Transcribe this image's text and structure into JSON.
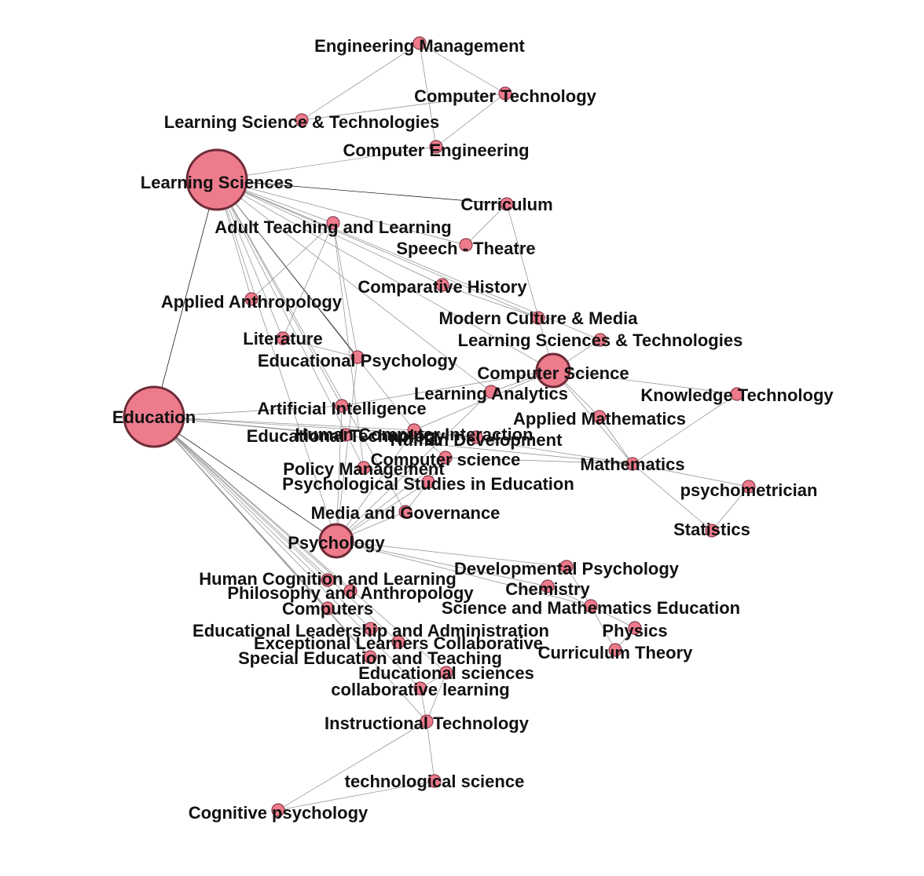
{
  "colors": {
    "node_fill": "#ee7b8c",
    "node_stroke": "#8a3a48",
    "edge": "#8a8a8a",
    "heavy_edge": "#000000",
    "label": "#111111"
  },
  "nodes": [
    {
      "id": "eng_mgmt",
      "label": "Engineering Management",
      "size": "small"
    },
    {
      "id": "comp_tech",
      "label": "Computer Technology",
      "size": "small"
    },
    {
      "id": "lst1",
      "label": "Learning Science & Technologies",
      "size": "small"
    },
    {
      "id": "comp_eng",
      "label": "Computer Engineering",
      "size": "small"
    },
    {
      "id": "ls",
      "label": "Learning Sciences",
      "size": "large"
    },
    {
      "id": "curriculum",
      "label": "Curriculum",
      "size": "small"
    },
    {
      "id": "adult",
      "label": "Adult Teaching and Learning",
      "size": "small"
    },
    {
      "id": "speech",
      "label": "Speech - Theatre",
      "size": "small"
    },
    {
      "id": "comp_hist",
      "label": "Comparative History",
      "size": "small"
    },
    {
      "id": "anthro",
      "label": "Applied Anthropology",
      "size": "small"
    },
    {
      "id": "modern",
      "label": "Modern Culture & Media",
      "size": "small"
    },
    {
      "id": "literature",
      "label": "Literature",
      "size": "small"
    },
    {
      "id": "lst2",
      "label": "Learning Sciences & Technologies",
      "size": "small"
    },
    {
      "id": "edpsych",
      "label": "Educational Psychology",
      "size": "small"
    },
    {
      "id": "cs",
      "label": "Computer Science",
      "size": "medium"
    },
    {
      "id": "la",
      "label": "Learning Analytics",
      "size": "small"
    },
    {
      "id": "kt",
      "label": "Knowledge Technology",
      "size": "small"
    },
    {
      "id": "education",
      "label": "Education",
      "size": "large"
    },
    {
      "id": "ai",
      "label": "Artificial Intelligence",
      "size": "small"
    },
    {
      "id": "am",
      "label": "Applied Mathematics",
      "size": "small"
    },
    {
      "id": "edtech",
      "label": "Educational Technology",
      "size": "small"
    },
    {
      "id": "hci",
      "label": "Human Computer Interaction",
      "size": "small"
    },
    {
      "id": "hd",
      "label": "Human Development",
      "size": "small"
    },
    {
      "id": "cs_lower",
      "label": "Computer science",
      "size": "small"
    },
    {
      "id": "math",
      "label": "Mathematics",
      "size": "small"
    },
    {
      "id": "policy",
      "label": "Policy Management",
      "size": "small"
    },
    {
      "id": "pse",
      "label": "Psychological Studies in Education",
      "size": "small"
    },
    {
      "id": "psychometrician",
      "label": "psychometrician",
      "size": "small"
    },
    {
      "id": "media",
      "label": "Media and Governance",
      "size": "small"
    },
    {
      "id": "statistics",
      "label": "Statistics",
      "size": "small"
    },
    {
      "id": "psychology",
      "label": "Psychology",
      "size": "medium"
    },
    {
      "id": "devpsych",
      "label": "Developmental Psychology",
      "size": "small"
    },
    {
      "id": "hcl",
      "label": "Human Cognition and Learning",
      "size": "small"
    },
    {
      "id": "chemistry",
      "label": "Chemistry",
      "size": "small"
    },
    {
      "id": "philanthro",
      "label": "Philosophy and Anthropology",
      "size": "small"
    },
    {
      "id": "computers",
      "label": "Computers",
      "size": "small"
    },
    {
      "id": "sme",
      "label": "Science and Mathematics Education",
      "size": "small"
    },
    {
      "id": "ela",
      "label": "Educational Leadership and Administration",
      "size": "small"
    },
    {
      "id": "physics",
      "label": "Physics",
      "size": "small"
    },
    {
      "id": "elc",
      "label": "Exceptional Learners Collaborative",
      "size": "small"
    },
    {
      "id": "ct",
      "label": "Curriculum Theory",
      "size": "small"
    },
    {
      "id": "set",
      "label": "Special Education and Teaching",
      "size": "small"
    },
    {
      "id": "edsci",
      "label": "Educational sciences",
      "size": "small"
    },
    {
      "id": "collab",
      "label": "collaborative learning",
      "size": "small"
    },
    {
      "id": "instech",
      "label": "Instructional Technology",
      "size": "small"
    },
    {
      "id": "techsci",
      "label": "technological science",
      "size": "small"
    },
    {
      "id": "cogpsych",
      "label": "Cognitive psychology",
      "size": "small"
    }
  ],
  "edges": [
    {
      "source": "eng_mgmt",
      "target": "lst1",
      "weight": 1
    },
    {
      "source": "eng_mgmt",
      "target": "comp_tech",
      "weight": 1
    },
    {
      "source": "eng_mgmt",
      "target": "comp_eng",
      "weight": 1
    },
    {
      "source": "lst1",
      "target": "comp_tech",
      "weight": 1
    },
    {
      "source": "comp_tech",
      "target": "comp_eng",
      "weight": 1
    },
    {
      "source": "ls",
      "target": "comp_eng",
      "weight": 1
    },
    {
      "source": "ls",
      "target": "curriculum",
      "weight": 4
    },
    {
      "source": "ls",
      "target": "education",
      "weight": 4
    },
    {
      "source": "ls",
      "target": "edpsych",
      "weight": 4
    },
    {
      "source": "ls",
      "target": "adult",
      "weight": 1
    },
    {
      "source": "ls",
      "target": "speech",
      "weight": 1
    },
    {
      "source": "ls",
      "target": "comp_hist",
      "weight": 1
    },
    {
      "source": "ls",
      "target": "anthro",
      "weight": 1
    },
    {
      "source": "ls",
      "target": "literature",
      "weight": 1
    },
    {
      "source": "ls",
      "target": "modern",
      "weight": 1
    },
    {
      "source": "ls",
      "target": "cs",
      "weight": 1
    },
    {
      "source": "ls",
      "target": "lst2",
      "weight": 1
    },
    {
      "source": "ls",
      "target": "la",
      "weight": 1
    },
    {
      "source": "ls",
      "target": "ai",
      "weight": 1
    },
    {
      "source": "ls",
      "target": "hci",
      "weight": 1
    },
    {
      "source": "ls",
      "target": "psychology",
      "weight": 1
    },
    {
      "source": "ls",
      "target": "policy",
      "weight": 1
    },
    {
      "source": "ls",
      "target": "media",
      "weight": 1
    },
    {
      "source": "curriculum",
      "target": "speech",
      "weight": 1
    },
    {
      "source": "curriculum",
      "target": "cs",
      "weight": 1
    },
    {
      "source": "adult",
      "target": "anthro",
      "weight": 1
    },
    {
      "source": "adult",
      "target": "literature",
      "weight": 1
    },
    {
      "source": "adult",
      "target": "edpsych",
      "weight": 1
    },
    {
      "source": "adult",
      "target": "policy",
      "weight": 1
    },
    {
      "source": "education",
      "target": "psychology",
      "weight": 6
    },
    {
      "source": "education",
      "target": "ai",
      "weight": 1
    },
    {
      "source": "education",
      "target": "edtech",
      "weight": 1
    },
    {
      "source": "education",
      "target": "hci",
      "weight": 1
    },
    {
      "source": "education",
      "target": "hd",
      "weight": 1
    },
    {
      "source": "education",
      "target": "math",
      "weight": 1
    },
    {
      "source": "education",
      "target": "hcl",
      "weight": 1
    },
    {
      "source": "education",
      "target": "philanthro",
      "weight": 1
    },
    {
      "source": "education",
      "target": "computers",
      "weight": 1
    },
    {
      "source": "education",
      "target": "ela",
      "weight": 1
    },
    {
      "source": "education",
      "target": "elc",
      "weight": 1
    },
    {
      "source": "education",
      "target": "set",
      "weight": 1
    },
    {
      "source": "education",
      "target": "edsci",
      "weight": 1
    },
    {
      "source": "education",
      "target": "collab",
      "weight": 1
    },
    {
      "source": "education",
      "target": "instech",
      "weight": 1
    },
    {
      "source": "cs",
      "target": "la",
      "weight": 1
    },
    {
      "source": "cs",
      "target": "kt",
      "weight": 1
    },
    {
      "source": "cs",
      "target": "am",
      "weight": 1
    },
    {
      "source": "cs",
      "target": "math",
      "weight": 1
    },
    {
      "source": "cs",
      "target": "lst2",
      "weight": 1
    },
    {
      "source": "cs",
      "target": "ai",
      "weight": 1
    },
    {
      "source": "cs",
      "target": "hci",
      "weight": 1
    },
    {
      "source": "kt",
      "target": "math",
      "weight": 1
    },
    {
      "source": "math",
      "target": "am",
      "weight": 1
    },
    {
      "source": "math",
      "target": "psychometrician",
      "weight": 1
    },
    {
      "source": "math",
      "target": "statistics",
      "weight": 1
    },
    {
      "source": "math",
      "target": "hci",
      "weight": 1
    },
    {
      "source": "math",
      "target": "cs_lower",
      "weight": 1
    },
    {
      "source": "psychometrician",
      "target": "statistics",
      "weight": 1
    },
    {
      "source": "psychology",
      "target": "pse",
      "weight": 1
    },
    {
      "source": "psychology",
      "target": "media",
      "weight": 1
    },
    {
      "source": "psychology",
      "target": "cs_lower",
      "weight": 1
    },
    {
      "source": "psychology",
      "target": "la",
      "weight": 1
    },
    {
      "source": "psychology",
      "target": "devpsych",
      "weight": 1
    },
    {
      "source": "psychology",
      "target": "chemistry",
      "weight": 1
    },
    {
      "source": "psychology",
      "target": "sme",
      "weight": 1
    },
    {
      "source": "psychology",
      "target": "ai",
      "weight": 1
    },
    {
      "source": "psychology",
      "target": "hci",
      "weight": 1
    },
    {
      "source": "psychology",
      "target": "edpsych",
      "weight": 1
    },
    {
      "source": "devpsych",
      "target": "sme",
      "weight": 1
    },
    {
      "source": "chemistry",
      "target": "sme",
      "weight": 1
    },
    {
      "source": "sme",
      "target": "physics",
      "weight": 1
    },
    {
      "source": "sme",
      "target": "ct",
      "weight": 1
    },
    {
      "source": "physics",
      "target": "ct",
      "weight": 1
    },
    {
      "source": "pse",
      "target": "policy",
      "weight": 1
    },
    {
      "source": "pse",
      "target": "media",
      "weight": 1
    },
    {
      "source": "pse",
      "target": "cs_lower",
      "weight": 1
    },
    {
      "source": "hci",
      "target": "hd",
      "weight": 1
    },
    {
      "source": "hci",
      "target": "cs_lower",
      "weight": 1
    },
    {
      "source": "edsci",
      "target": "collab",
      "weight": 1
    },
    {
      "source": "collab",
      "target": "instech",
      "weight": 1
    },
    {
      "source": "instech",
      "target": "edsci",
      "weight": 1
    },
    {
      "source": "instech",
      "target": "techsci",
      "weight": 1
    },
    {
      "source": "instech",
      "target": "cogpsych",
      "weight": 1
    },
    {
      "source": "techsci",
      "target": "cogpsych",
      "weight": 1
    },
    {
      "source": "literature",
      "target": "edpsych",
      "weight": 1
    },
    {
      "source": "comp_hist",
      "target": "modern",
      "weight": 1
    }
  ]
}
